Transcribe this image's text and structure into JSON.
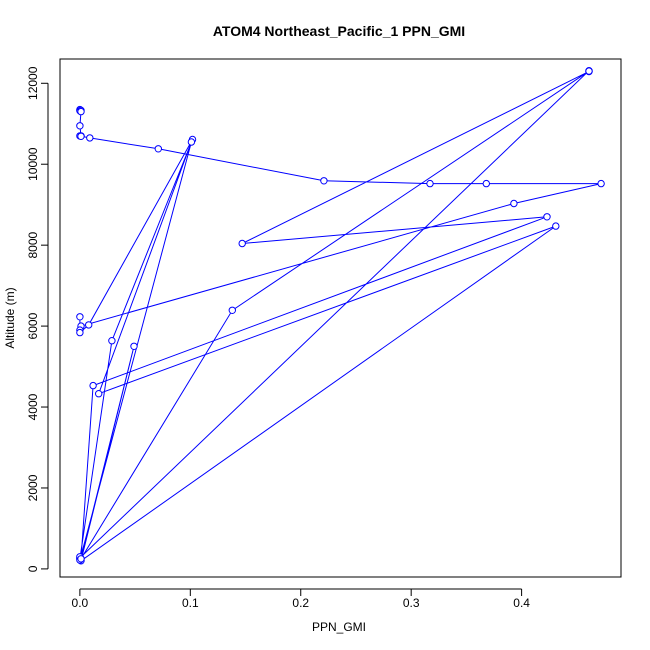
{
  "chart_data": {
    "type": "line",
    "title": "ATOM4 Northeast_Pacific_1 PPN_GMI",
    "xlabel": "PPN_GMI",
    "ylabel": "Altitude (m)",
    "xlim": [
      -0.018,
      0.49
    ],
    "ylim": [
      -200,
      12600
    ],
    "xticks": [
      {
        "value": 0.0,
        "label": "0.0"
      },
      {
        "value": 0.1,
        "label": "0.1"
      },
      {
        "value": 0.2,
        "label": "0.2"
      },
      {
        "value": 0.3,
        "label": "0.3"
      },
      {
        "value": 0.4,
        "label": "0.4"
      }
    ],
    "yticks": [
      {
        "value": 0,
        "label": "0"
      },
      {
        "value": 2000,
        "label": "2000"
      },
      {
        "value": 4000,
        "label": "4000"
      },
      {
        "value": 6000,
        "label": "6000"
      },
      {
        "value": 8000,
        "label": "8000"
      },
      {
        "value": 10000,
        "label": "10000"
      },
      {
        "value": 12000,
        "label": "12000"
      }
    ],
    "color": "#0000ff",
    "markers": "open-circle",
    "grid": false,
    "series": [
      {
        "x": [
          0.0,
          0.0,
          0.001,
          0.001,
          0.0,
          0.001,
          0.0,
          0.001,
          0.009,
          0.071,
          0.221,
          0.317,
          0.368,
          0.472,
          0.393,
          0.001,
          0.0,
          0.0,
          0.0,
          0.008,
          0.102,
          0.029,
          0.0,
          0.0,
          0.461,
          0.461,
          0.147,
          0.423,
          0.012,
          0.001,
          0.049,
          0.001,
          0.431,
          0.017,
          0.101,
          0.0,
          0.0,
          0.001,
          0.138,
          0.461
        ],
        "y": [
          11350,
          11320,
          11330,
          11300,
          10950,
          10700,
          10700,
          10690,
          10650,
          10380,
          9590,
          9520,
          9520,
          9520,
          9030,
          6000,
          5900,
          6230,
          5840,
          6030,
          10610,
          5640,
          250,
          270,
          12310,
          12290,
          8040,
          8700,
          4530,
          250,
          5500,
          200,
          8470,
          4330,
          10550,
          220,
          300,
          250,
          6390,
          12300
        ]
      }
    ]
  }
}
